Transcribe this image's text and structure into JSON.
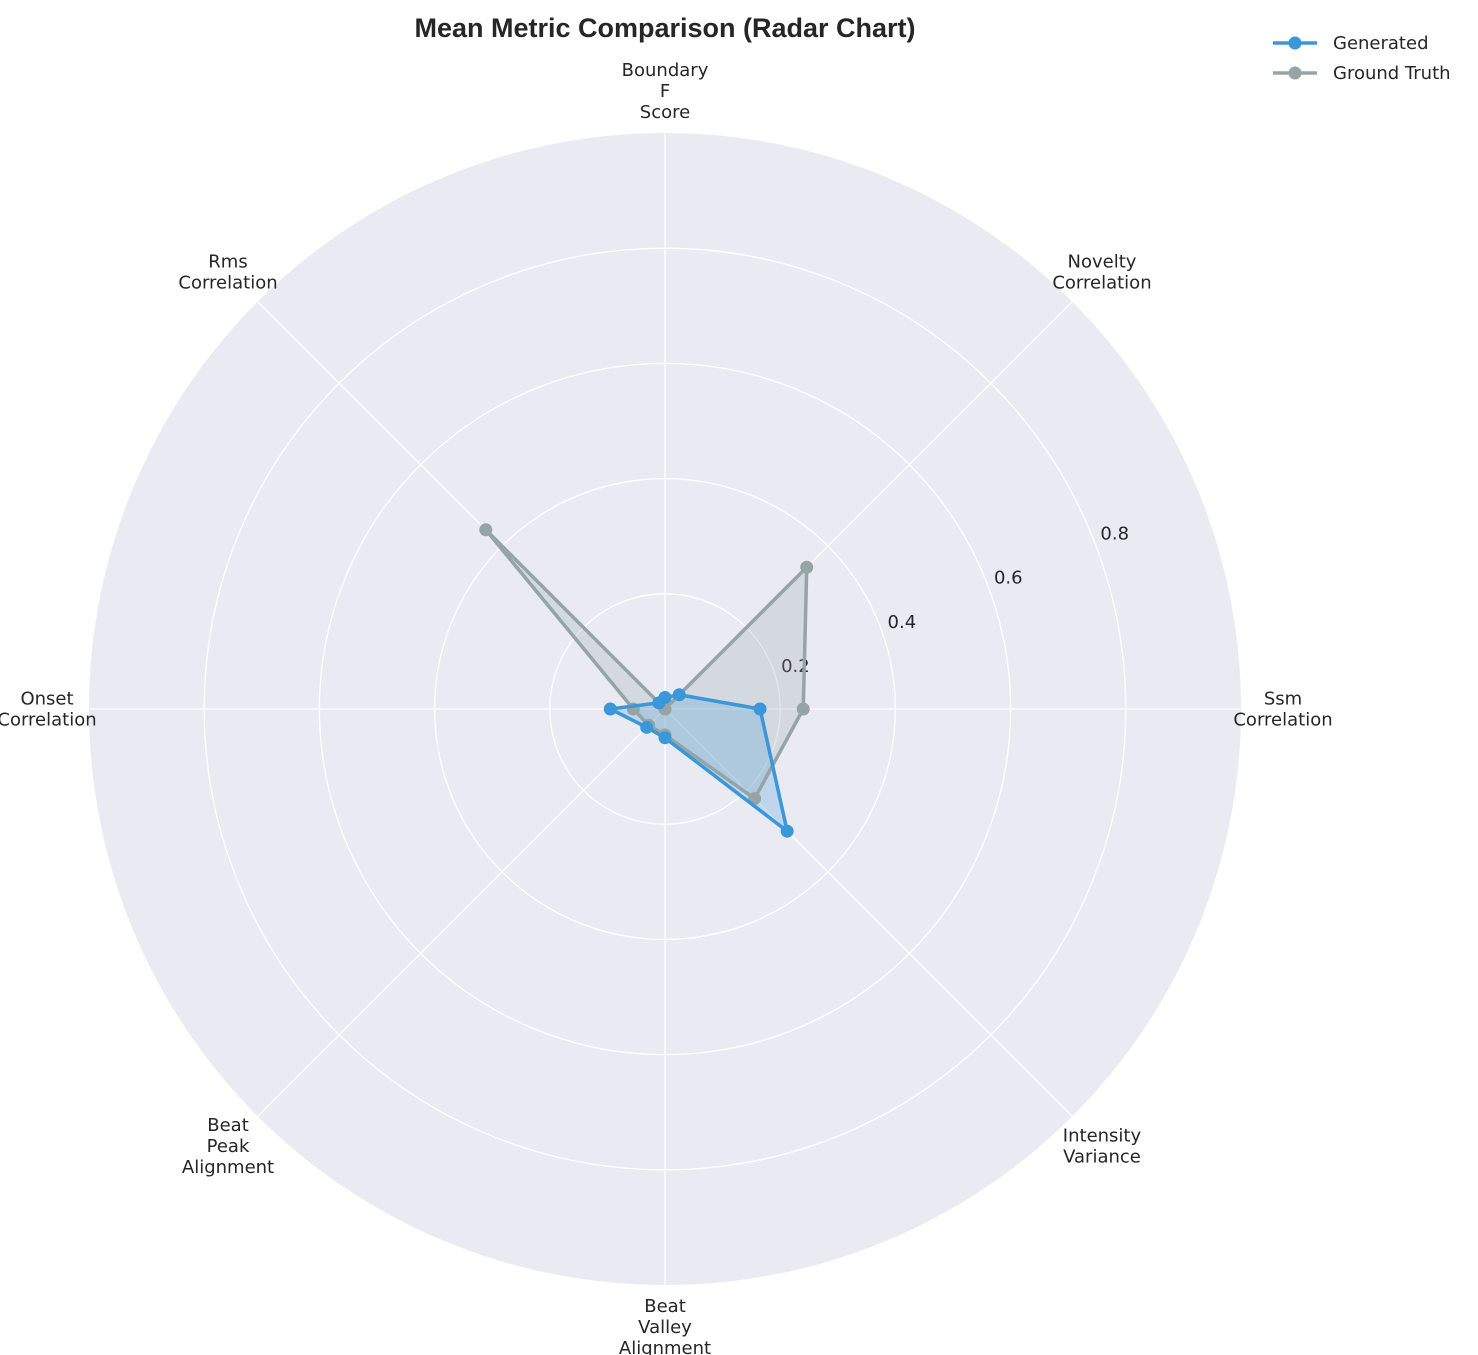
{
  "chart_data": {
    "type": "radar",
    "title": "Mean Metric Comparison (Radar Chart)",
    "categories": [
      "Ssm\nCorrelation",
      "Novelty\nCorrelation",
      "Boundary\nF\nScore",
      "Rms\nCorrelation",
      "Onset\nCorrelation",
      "Beat\nPeak\nAlignment",
      "Beat\nValley\nAlignment",
      "Intensity\nVariance"
    ],
    "rlim": [
      0,
      1.0
    ],
    "rticks": [
      0.2,
      0.4,
      0.6,
      0.8
    ],
    "rtick_labels": [
      "0.2",
      "0.4",
      "0.6",
      "0.8"
    ],
    "grid": true,
    "legend_position": "top-right",
    "series": [
      {
        "name": "Generated",
        "color": "#3a97d9",
        "values": [
          0.165,
          0.035,
          0.02,
          0.015,
          0.095,
          0.045,
          0.05,
          0.3
        ]
      },
      {
        "name": "Ground Truth",
        "color": "#95a5a6",
        "values": [
          0.24,
          0.348,
          0.0,
          0.44,
          0.055,
          0.04,
          0.045,
          0.22
        ]
      }
    ]
  }
}
